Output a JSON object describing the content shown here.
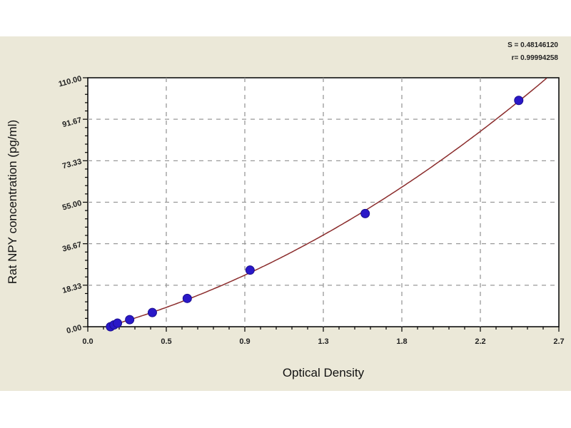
{
  "chart_data": {
    "type": "scatter",
    "title": "",
    "xlabel": "Optical Density",
    "ylabel": "Rat NPY concentration (pg/ml)",
    "xlim": [
      0,
      2.7
    ],
    "ylim": [
      0,
      110
    ],
    "x_ticks": [
      "0.0",
      "0.5",
      "0.9",
      "1.3",
      "1.8",
      "2.2",
      "2.7"
    ],
    "x_tick_values": [
      0,
      0.45,
      0.9,
      1.35,
      1.8,
      2.25,
      2.7
    ],
    "y_ticks": [
      "0.00",
      "18.33",
      "36.67",
      "55.00",
      "73.33",
      "91.67",
      "110.00"
    ],
    "y_tick_values": [
      0,
      18.33,
      36.67,
      55,
      73.33,
      91.67,
      110
    ],
    "grid": true,
    "stats": [
      "S = 0.48146120",
      "r= 0.99994258"
    ],
    "series": [
      {
        "x": [
          0.13,
          0.15,
          0.17,
          0.24,
          0.37,
          0.57,
          0.93,
          1.59,
          2.47
        ],
        "y": [
          0,
          0.78,
          1.56,
          3.12,
          6.25,
          12.5,
          25,
          50,
          100
        ]
      }
    ],
    "fit": "quadratic",
    "colors": {
      "points": "#2a18c8",
      "curve": "#8b2c2c",
      "background": "#ebe8d8",
      "grid": "#999999"
    }
  }
}
